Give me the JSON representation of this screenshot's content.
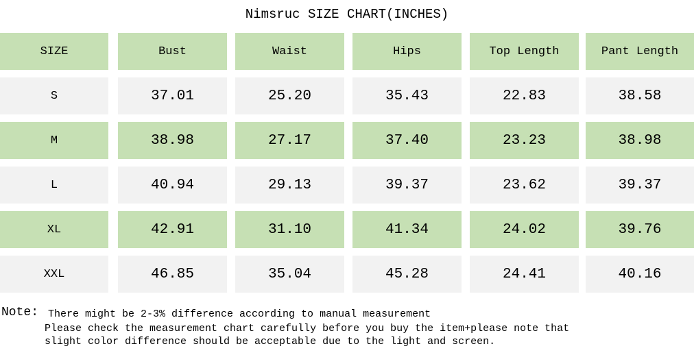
{
  "header": {
    "title": "Nimsruc SIZE CHART(INCHES)"
  },
  "table": {
    "columns": [
      "SIZE",
      "Bust",
      "Waist",
      "Hips",
      "Top Length",
      "Pant Length"
    ],
    "rows": [
      [
        "S",
        "37.01",
        "25.20",
        "35.43",
        "22.83",
        "38.58"
      ],
      [
        "M",
        "38.98",
        "27.17",
        "37.40",
        "23.23",
        "38.98"
      ],
      [
        "L",
        "40.94",
        "29.13",
        "39.37",
        "23.62",
        "39.37"
      ],
      [
        "XL",
        "42.91",
        "31.10",
        "41.34",
        "24.02",
        "39.76"
      ],
      [
        "XXL",
        "46.85",
        "35.04",
        "45.28",
        "24.41",
        "40.16"
      ]
    ]
  },
  "note": {
    "label": "Note:",
    "lines": [
      "There might be 2-3% difference according to manual measurement",
      "Please check the measurement chart carefully before you buy the item+please note that",
      "slight color difference should be acceptable due to the light and screen."
    ]
  }
}
